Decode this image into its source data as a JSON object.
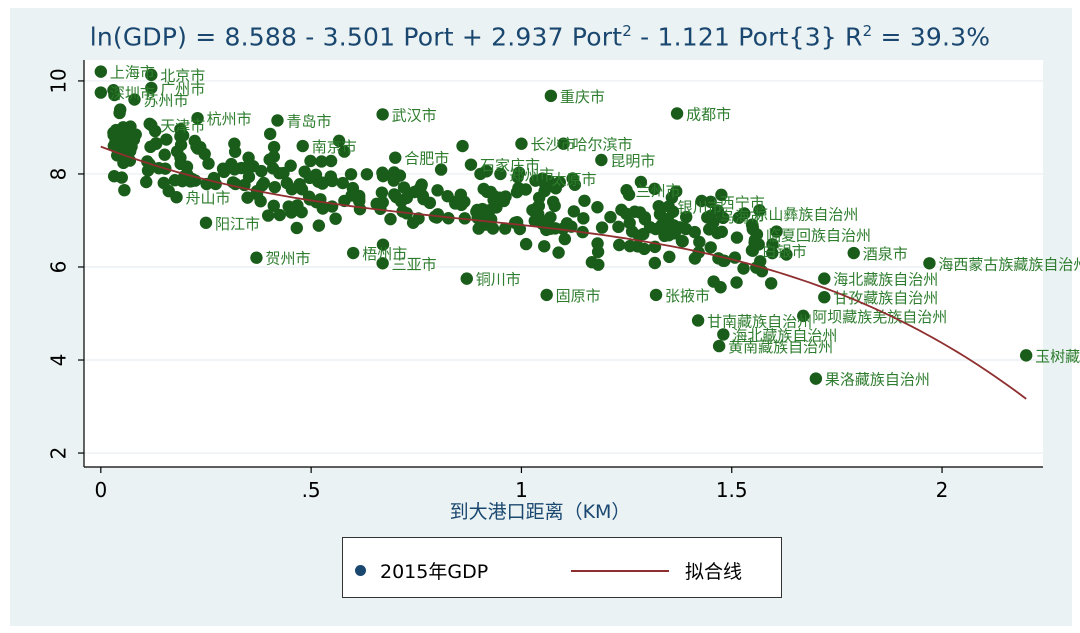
{
  "chart_data": {
    "type": "scatter",
    "title": {
      "prefix": "ln(GDP) = 8.588 - 3.501 Port + 2.937 Port",
      "sup1": "2",
      "middle": " - 1.121 Port{3}  R",
      "sup2": "2",
      "suffix": " = 39.3%"
    },
    "xlabel": "到大港口距离（KM）",
    "ylabel": "",
    "xlim": [
      -0.04,
      2.24
    ],
    "ylim": [
      1.7,
      10.45
    ],
    "xticks": [
      0,
      0.5,
      1,
      1.5,
      2
    ],
    "xtick_labels": [
      "0",
      ".5",
      "1",
      "1.5",
      "2"
    ],
    "yticks": [
      2,
      4,
      6,
      8,
      10
    ],
    "ytick_labels": [
      "2",
      "4",
      "6",
      "8",
      "10"
    ],
    "grid": "horizontal",
    "legend_position": "bottom-center",
    "colors": {
      "point": "#1a5c1a",
      "label": "#2e7d2e",
      "fit": "#8f2f2f",
      "axis": "#000000",
      "grid": "#e8eef0",
      "legend_dot": "#1a476f"
    },
    "legend": {
      "scatter": "2015年GDP",
      "fit": "拟合线"
    },
    "series": [
      {
        "name": "2015年GDP",
        "points": [
          {
            "x": 0.0,
            "y": 10.2,
            "label": "上海市"
          },
          {
            "x": 0.12,
            "y": 10.13,
            "label": "北京市"
          },
          {
            "x": 0.0,
            "y": 9.75,
            "label": "深圳市"
          },
          {
            "x": 0.03,
            "y": 9.8,
            "label": ""
          },
          {
            "x": 0.12,
            "y": 9.85,
            "label": "广州市"
          },
          {
            "x": 0.08,
            "y": 9.6,
            "label": "苏州市"
          },
          {
            "x": 1.07,
            "y": 9.68,
            "label": "重庆市"
          },
          {
            "x": 1.37,
            "y": 9.3,
            "label": "成都市"
          },
          {
            "x": 0.67,
            "y": 9.28,
            "label": "武汉市"
          },
          {
            "x": 0.42,
            "y": 9.15,
            "label": "青岛市"
          },
          {
            "x": 0.23,
            "y": 9.2,
            "label": "杭州市"
          },
          {
            "x": 0.12,
            "y": 9.05,
            "label": "天津市"
          },
          {
            "x": 1.0,
            "y": 8.65,
            "label": "长沙市"
          },
          {
            "x": 1.1,
            "y": 8.65,
            "label": "哈尔滨市"
          },
          {
            "x": 1.19,
            "y": 8.3,
            "label": "昆明市"
          },
          {
            "x": 0.88,
            "y": 8.2,
            "label": "石家庄市"
          },
          {
            "x": 0.86,
            "y": 8.6,
            "label": ""
          },
          {
            "x": 1.25,
            "y": 7.65,
            "label": "兰州市"
          },
          {
            "x": 1.53,
            "y": 7.15,
            "label": "凉山彝族自治州"
          },
          {
            "x": 1.56,
            "y": 6.7,
            "label": "临夏回族自治州"
          },
          {
            "x": 1.79,
            "y": 6.3,
            "label": "酒泉市"
          },
          {
            "x": 1.97,
            "y": 6.08,
            "label": "海西蒙古族藏族自治州"
          },
          {
            "x": 1.72,
            "y": 5.75,
            "label": "海北藏族自治州"
          },
          {
            "x": 1.72,
            "y": 5.35,
            "label": "甘孜藏族自治州"
          },
          {
            "x": 1.67,
            "y": 4.95,
            "label": "阿坝藏族羌族自治州"
          },
          {
            "x": 1.47,
            "y": 4.3,
            "label": "黄南藏族自治州"
          },
          {
            "x": 1.48,
            "y": 4.55,
            "label": "海北藏族自治州"
          },
          {
            "x": 1.42,
            "y": 4.85,
            "label": "甘南藏族自治州"
          },
          {
            "x": 1.7,
            "y": 3.6,
            "label": "果洛藏族自治州"
          },
          {
            "x": 2.2,
            "y": 4.1,
            "label": "玉树藏族自治州"
          },
          {
            "x": 0.87,
            "y": 5.75,
            "label": "铜川市"
          },
          {
            "x": 1.06,
            "y": 5.4,
            "label": "固原市"
          },
          {
            "x": 0.67,
            "y": 6.08,
            "label": "三亚市"
          },
          {
            "x": 0.37,
            "y": 6.2,
            "label": "贺州市"
          },
          {
            "x": 0.6,
            "y": 6.3,
            "label": "梧州市"
          },
          {
            "x": 1.32,
            "y": 5.4,
            "label": "张掖市"
          },
          {
            "x": 1.45,
            "y": 7.1,
            "label": "乌海市"
          },
          {
            "x": 1.55,
            "y": 6.35,
            "label": "白银市"
          },
          {
            "x": 0.48,
            "y": 8.6,
            "label": "南京市"
          },
          {
            "x": 0.7,
            "y": 8.35,
            "label": "合肥市"
          },
          {
            "x": 0.18,
            "y": 7.5,
            "label": "舟山市"
          },
          {
            "x": 0.25,
            "y": 6.95,
            "label": "阳江市"
          },
          {
            "x": 0.95,
            "y": 8.0,
            "label": "郑州市"
          },
          {
            "x": 1.05,
            "y": 7.9,
            "label": "太原市"
          },
          {
            "x": 1.45,
            "y": 7.4,
            "label": "西宁市"
          },
          {
            "x": 1.35,
            "y": 7.3,
            "label": "银川市"
          }
        ]
      }
    ],
    "fit": {
      "name": "拟合线",
      "coefficients": {
        "intercept": 8.588,
        "b1": -3.501,
        "b2": 2.937,
        "b3": -1.121
      },
      "x_range": [
        0,
        2.2
      ]
    }
  }
}
